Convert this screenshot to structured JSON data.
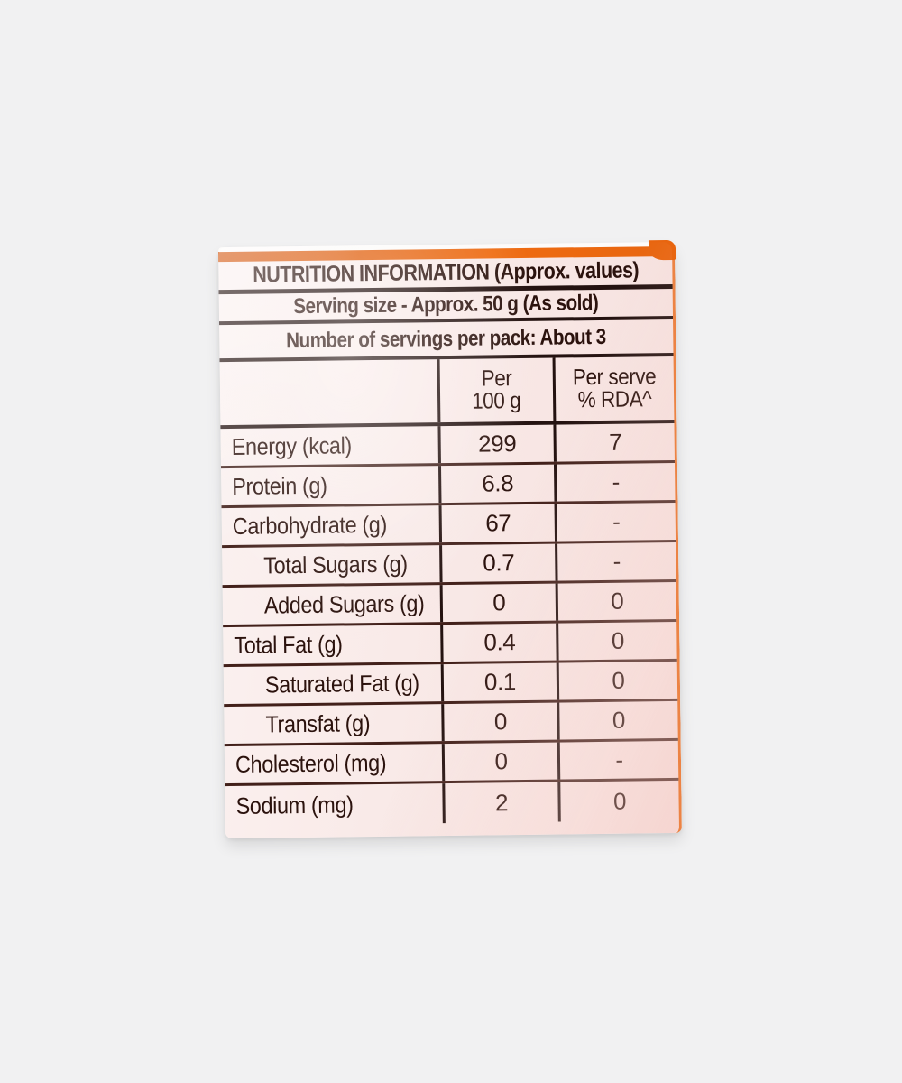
{
  "colors": {
    "page_bg": "#f1f1f2",
    "label_bg": "#f9eae8",
    "accent_orange": "#e8650f",
    "line_dark": "#241210",
    "text_dark": "#2b120d"
  },
  "label": {
    "title": "NUTRITION INFORMATION (Approx. values)",
    "serving_size": "Serving size - Approx. 50 g (As sold)",
    "servings_per_pack": "Number of servings per pack: About 3",
    "table": {
      "col_headers": {
        "per_100g": [
          "Per",
          "100 g"
        ],
        "per_serve": [
          "Per serve",
          "% RDA^"
        ]
      },
      "rows": [
        {
          "nutrient": "Energy (kcal)",
          "per_100g": "299",
          "per_serve": "7",
          "indent": false
        },
        {
          "nutrient": "Protein (g)",
          "per_100g": "6.8",
          "per_serve": "-",
          "indent": false
        },
        {
          "nutrient": "Carbohydrate (g)",
          "per_100g": "67",
          "per_serve": "-",
          "indent": false
        },
        {
          "nutrient": "Total Sugars (g)",
          "per_100g": "0.7",
          "per_serve": "-",
          "indent": true
        },
        {
          "nutrient": "Added Sugars (g)",
          "per_100g": "0",
          "per_serve": "0",
          "indent": true
        },
        {
          "nutrient": "Total Fat (g)",
          "per_100g": "0.4",
          "per_serve": "0",
          "indent": false
        },
        {
          "nutrient": "Saturated Fat (g)",
          "per_100g": "0.1",
          "per_serve": "0",
          "indent": true
        },
        {
          "nutrient": "Transfat (g)",
          "per_100g": "0",
          "per_serve": "0",
          "indent": true
        },
        {
          "nutrient": "Cholesterol (mg)",
          "per_100g": "0",
          "per_serve": "-",
          "indent": false
        },
        {
          "nutrient": "Sodium (mg)",
          "per_100g": "2",
          "per_serve": "0",
          "indent": false
        }
      ]
    }
  }
}
